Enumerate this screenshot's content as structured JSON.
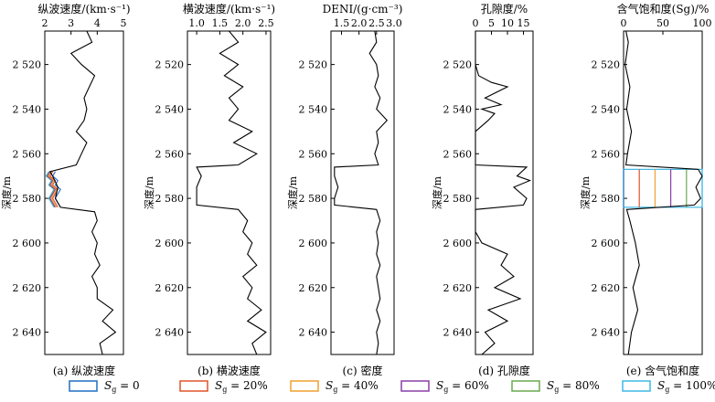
{
  "figure": {
    "depth_axis": {
      "label": "深度/m",
      "range": [
        2505,
        2650
      ],
      "tick_values": [
        2520,
        2540,
        2560,
        2580,
        2600,
        2620,
        2640
      ],
      "tick_labels": [
        "2 520",
        "2 540",
        "2 560",
        "2 580",
        "2 600",
        "2 620",
        "2 640"
      ]
    },
    "legend": [
      {
        "label": "S",
        "sub": "g",
        "suffix": " = 0",
        "color": "#1f6fc2"
      },
      {
        "label": "S",
        "sub": "g",
        "suffix": " = 20%",
        "color": "#e0532b"
      },
      {
        "label": "S",
        "sub": "g",
        "suffix": " = 40%",
        "color": "#f0a030"
      },
      {
        "label": "S",
        "sub": "g",
        "suffix": " = 60%",
        "color": "#8a3fa8"
      },
      {
        "label": "S",
        "sub": "g",
        "suffix": " = 80%",
        "color": "#6aa84f"
      },
      {
        "label": "S",
        "sub": "g",
        "suffix": " = 100%",
        "color": "#3fb8e6"
      }
    ]
  },
  "chart_data": [
    {
      "type": "line",
      "title": "纵波速度/(km·s⁻¹)",
      "caption": "(a) 纵波速度",
      "xlim": [
        2,
        5
      ],
      "x_ticks": [
        2,
        3,
        4,
        5
      ],
      "x_tick_labels": [
        "2",
        "3",
        "4",
        "5"
      ],
      "series": [
        {
          "color": "#000000",
          "depth": [
            2505,
            2510,
            2515,
            2520,
            2525,
            2530,
            2535,
            2540,
            2545,
            2550,
            2555,
            2560,
            2565,
            2568,
            2570,
            2575,
            2580,
            2584,
            2586,
            2590,
            2595,
            2600,
            2605,
            2610,
            2615,
            2620,
            2625,
            2630,
            2635,
            2640,
            2645,
            2650
          ],
          "values": [
            3.6,
            3.8,
            3.0,
            3.4,
            3.9,
            3.7,
            3.5,
            3.6,
            3.5,
            3.2,
            3.6,
            3.4,
            3.2,
            2.2,
            2.3,
            2.5,
            2.4,
            2.6,
            3.9,
            4.0,
            3.8,
            4.0,
            3.9,
            4.1,
            3.8,
            4.0,
            4.0,
            4.6,
            4.2,
            4.7,
            4.1,
            4.2
          ]
        }
      ],
      "gas_zone": {
        "depth": [
          2568,
          2584
        ],
        "sg_series": [
          {
            "sg": 0,
            "values": [
              2.4,
              2.3,
              2.5,
              2.4,
              2.6,
              2.5,
              2.4,
              2.5,
              2.6
            ]
          },
          {
            "sg": 20,
            "values": [
              2.3,
              2.2,
              2.4,
              2.3,
              2.5,
              2.4,
              2.3,
              2.4,
              2.5
            ]
          },
          {
            "sg": 40,
            "values": [
              2.25,
              2.15,
              2.35,
              2.25,
              2.45,
              2.35,
              2.25,
              2.35,
              2.45
            ]
          },
          {
            "sg": 60,
            "values": [
              2.2,
              2.1,
              2.3,
              2.2,
              2.4,
              2.3,
              2.2,
              2.3,
              2.4
            ]
          },
          {
            "sg": 80,
            "values": [
              2.18,
              2.08,
              2.28,
              2.18,
              2.38,
              2.28,
              2.18,
              2.28,
              2.38
            ]
          },
          {
            "sg": 100,
            "values": [
              2.15,
              2.05,
              2.25,
              2.15,
              2.35,
              2.25,
              2.15,
              2.25,
              2.35
            ]
          }
        ]
      }
    },
    {
      "type": "line",
      "title": "横波速度/(km·s⁻¹)",
      "caption": "(b) 横波速度",
      "xlim": [
        0.8,
        2.6
      ],
      "x_ticks": [
        1.0,
        1.5,
        2.0,
        2.5
      ],
      "x_tick_labels": [
        "1.0",
        "1.5",
        "2.0",
        "2.5"
      ],
      "series": [
        {
          "color": "#000000",
          "depth": [
            2505,
            2510,
            2515,
            2520,
            2525,
            2530,
            2535,
            2540,
            2545,
            2550,
            2555,
            2560,
            2565,
            2566,
            2570,
            2575,
            2580,
            2583,
            2585,
            2590,
            2595,
            2600,
            2605,
            2610,
            2615,
            2620,
            2625,
            2630,
            2635,
            2640,
            2645,
            2650
          ],
          "values": [
            1.7,
            1.9,
            1.5,
            1.9,
            1.6,
            2.0,
            1.7,
            1.9,
            1.7,
            2.2,
            1.8,
            2.3,
            1.9,
            1.0,
            1.1,
            1.0,
            1.0,
            1.0,
            1.9,
            2.1,
            2.0,
            2.2,
            2.1,
            2.3,
            2.0,
            2.2,
            2.1,
            2.4,
            2.1,
            2.5,
            2.2,
            2.3
          ]
        }
      ]
    },
    {
      "type": "line",
      "title": "DENI/(g·cm⁻³)",
      "caption": "(c) 密度",
      "xlim": [
        1.2,
        3.0
      ],
      "x_ticks": [
        1.5,
        2.0,
        2.5,
        3.0
      ],
      "x_tick_labels": [
        "1.5",
        "2.0",
        "2.5",
        "3.0"
      ],
      "series": [
        {
          "color": "#000000",
          "depth": [
            2505,
            2510,
            2515,
            2520,
            2525,
            2530,
            2535,
            2540,
            2545,
            2550,
            2555,
            2560,
            2565,
            2566,
            2570,
            2575,
            2580,
            2583,
            2585,
            2590,
            2595,
            2600,
            2605,
            2610,
            2615,
            2620,
            2625,
            2630,
            2635,
            2640,
            2645,
            2650
          ],
          "values": [
            2.45,
            2.5,
            2.3,
            2.5,
            2.55,
            2.45,
            2.6,
            2.5,
            2.8,
            2.5,
            2.55,
            2.45,
            2.55,
            1.3,
            1.3,
            1.4,
            1.3,
            1.3,
            2.5,
            2.6,
            2.5,
            2.55,
            2.5,
            2.6,
            2.5,
            2.55,
            2.6,
            2.5,
            2.6,
            2.5,
            2.55,
            2.5
          ]
        }
      ]
    },
    {
      "type": "line",
      "title": "孔隙度/%",
      "caption": "(d) 孔隙度",
      "xlim": [
        0,
        18
      ],
      "x_ticks": [
        0,
        5,
        10,
        15
      ],
      "x_tick_labels": [
        "0",
        "5",
        "10",
        "15"
      ],
      "series": [
        {
          "color": "#000000",
          "depth": [
            2505,
            2520,
            2525,
            2528,
            2530,
            2535,
            2538,
            2540,
            2542,
            2545,
            2550,
            2560,
            2565,
            2566,
            2570,
            2572,
            2575,
            2580,
            2583,
            2585,
            2590,
            2595,
            2600,
            2605,
            2610,
            2615,
            2620,
            2625,
            2630,
            2635,
            2640,
            2645,
            2650
          ],
          "values": [
            0,
            0,
            1,
            5,
            10,
            3,
            8,
            2,
            6,
            4,
            0,
            0,
            0,
            16,
            13,
            17,
            12,
            16,
            15,
            0,
            0,
            0,
            2,
            10,
            8,
            12,
            6,
            14,
            4,
            10,
            3,
            6,
            2
          ]
        }
      ]
    },
    {
      "type": "line",
      "title": "含气饱和度(Sg)/%",
      "caption": "(e) 含气饱和度",
      "xlim": [
        0,
        100
      ],
      "x_ticks": [
        0,
        50,
        100
      ],
      "x_tick_labels": [
        "0",
        "50",
        "100"
      ],
      "series": [
        {
          "color": "#000000",
          "depth": [
            2505,
            2510,
            2520,
            2530,
            2540,
            2550,
            2560,
            2565,
            2567,
            2570,
            2575,
            2580,
            2583,
            2585,
            2590,
            2600,
            2610,
            2620,
            2630,
            2640,
            2650
          ],
          "values": [
            3,
            6,
            2,
            8,
            4,
            10,
            5,
            3,
            95,
            100,
            92,
            98,
            90,
            4,
            8,
            15,
            20,
            12,
            18,
            10,
            6
          ]
        }
      ],
      "gas_zone": {
        "depth": [
          2567,
          2584
        ],
        "sg_levels": [
          0,
          20,
          40,
          60,
          80,
          100
        ]
      }
    }
  ]
}
